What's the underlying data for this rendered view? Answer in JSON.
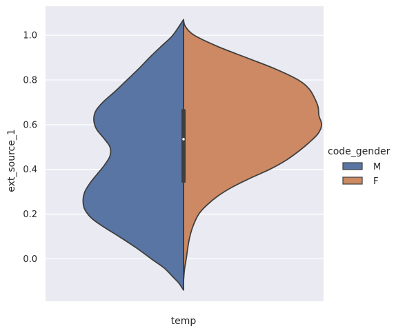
{
  "chart_data": {
    "type": "violin",
    "style": "split",
    "xlabel": "temp",
    "ylabel": "ext_source_1",
    "categories": [
      "temp"
    ],
    "ylim": [
      -0.19,
      1.13
    ],
    "yticks": [
      0.0,
      0.2,
      0.4,
      0.6,
      0.8,
      1.0
    ],
    "ytick_labels": [
      "0.0",
      "0.2",
      "0.4",
      "0.6",
      "0.8",
      "1.0"
    ],
    "grid": true,
    "background": "#eaeaf2",
    "legend": {
      "title": "code_gender",
      "placement": "right",
      "entries": [
        "M",
        "F"
      ]
    },
    "series": [
      {
        "name": "M",
        "color": "#5875a4",
        "side": "left",
        "density": [
          [
            1.07,
            0.0
          ],
          [
            1.0,
            0.12
          ],
          [
            0.95,
            0.25
          ],
          [
            0.9,
            0.38
          ],
          [
            0.85,
            0.5
          ],
          [
            0.8,
            0.63
          ],
          [
            0.75,
            0.76
          ],
          [
            0.7,
            0.9
          ],
          [
            0.66,
            0.98
          ],
          [
            0.62,
            1.0
          ],
          [
            0.58,
            0.97
          ],
          [
            0.54,
            0.89
          ],
          [
            0.5,
            0.82
          ],
          [
            0.46,
            0.82
          ],
          [
            0.42,
            0.88
          ],
          [
            0.38,
            0.96
          ],
          [
            0.34,
            1.04
          ],
          [
            0.3,
            1.1
          ],
          [
            0.26,
            1.12
          ],
          [
            0.22,
            1.1
          ],
          [
            0.18,
            1.02
          ],
          [
            0.14,
            0.88
          ],
          [
            0.1,
            0.72
          ],
          [
            0.05,
            0.53
          ],
          [
            0.0,
            0.36
          ],
          [
            -0.04,
            0.22
          ],
          [
            -0.08,
            0.12
          ],
          [
            -0.11,
            0.05
          ],
          [
            -0.14,
            0.0
          ]
        ]
      },
      {
        "name": "F",
        "color": "#cc8963",
        "side": "right",
        "density": [
          [
            1.07,
            0.0
          ],
          [
            1.04,
            0.02
          ],
          [
            1.0,
            0.12
          ],
          [
            0.95,
            0.38
          ],
          [
            0.9,
            0.7
          ],
          [
            0.85,
            1.02
          ],
          [
            0.8,
            1.28
          ],
          [
            0.76,
            1.4
          ],
          [
            0.72,
            1.46
          ],
          [
            0.68,
            1.5
          ],
          [
            0.64,
            1.51
          ],
          [
            0.6,
            1.54
          ],
          [
            0.56,
            1.5
          ],
          [
            0.52,
            1.4
          ],
          [
            0.48,
            1.28
          ],
          [
            0.44,
            1.14
          ],
          [
            0.4,
            0.96
          ],
          [
            0.36,
            0.74
          ],
          [
            0.32,
            0.54
          ],
          [
            0.28,
            0.38
          ],
          [
            0.24,
            0.26
          ],
          [
            0.2,
            0.17
          ],
          [
            0.14,
            0.1
          ],
          [
            0.08,
            0.06
          ],
          [
            0.0,
            0.03
          ],
          [
            -0.05,
            0.01
          ],
          [
            -0.1,
            0.0
          ]
        ]
      }
    ],
    "box": {
      "q1": 0.34,
      "median": 0.535,
      "q3": 0.67
    }
  }
}
